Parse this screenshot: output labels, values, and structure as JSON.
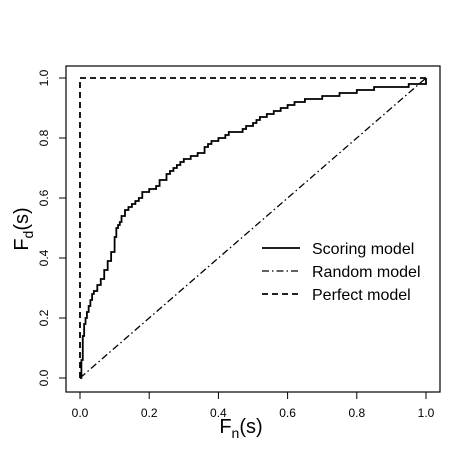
{
  "chart_data": {
    "type": "line",
    "xlabel": {
      "main": "F",
      "sub": "n",
      "rest": "(s)"
    },
    "ylabel": {
      "main": "F",
      "sub": "d",
      "rest": "(s)"
    },
    "xlim": [
      0,
      1
    ],
    "ylim": [
      0,
      1
    ],
    "x_ticks": [
      "0.0",
      "0.2",
      "0.4",
      "0.6",
      "0.8",
      "1.0"
    ],
    "y_ticks": [
      "0.0",
      "0.2",
      "0.4",
      "0.6",
      "0.8",
      "1.0"
    ],
    "grid": false,
    "legend_position": "center-right",
    "series": [
      {
        "name": "Scoring model",
        "style": "solid",
        "x": [
          0,
          0.004,
          0.008,
          0.012,
          0.016,
          0.02,
          0.025,
          0.03,
          0.035,
          0.04,
          0.05,
          0.06,
          0.07,
          0.08,
          0.09,
          0.1,
          0.105,
          0.11,
          0.115,
          0.12,
          0.13,
          0.14,
          0.15,
          0.16,
          0.17,
          0.18,
          0.19,
          0.2,
          0.22,
          0.23,
          0.25,
          0.26,
          0.27,
          0.28,
          0.29,
          0.3,
          0.32,
          0.34,
          0.36,
          0.37,
          0.38,
          0.4,
          0.42,
          0.43,
          0.45,
          0.47,
          0.48,
          0.5,
          0.51,
          0.52,
          0.54,
          0.56,
          0.58,
          0.6,
          0.62,
          0.65,
          0.7,
          0.75,
          0.8,
          0.85,
          0.9,
          0.95,
          1.0
        ],
        "y": [
          0,
          0.06,
          0.14,
          0.18,
          0.2,
          0.22,
          0.24,
          0.26,
          0.28,
          0.29,
          0.31,
          0.33,
          0.36,
          0.39,
          0.42,
          0.47,
          0.5,
          0.51,
          0.52,
          0.54,
          0.56,
          0.57,
          0.58,
          0.59,
          0.6,
          0.62,
          0.62,
          0.63,
          0.64,
          0.66,
          0.68,
          0.69,
          0.7,
          0.71,
          0.72,
          0.73,
          0.74,
          0.75,
          0.77,
          0.78,
          0.79,
          0.8,
          0.81,
          0.82,
          0.82,
          0.83,
          0.84,
          0.85,
          0.86,
          0.87,
          0.88,
          0.89,
          0.9,
          0.91,
          0.92,
          0.93,
          0.94,
          0.95,
          0.96,
          0.97,
          0.97,
          0.98,
          1.0
        ]
      },
      {
        "name": "Random model",
        "style": "dashdot",
        "x": [
          0,
          1
        ],
        "y": [
          0,
          1
        ]
      },
      {
        "name": "Perfect model",
        "style": "dashed",
        "x": [
          0,
          0,
          1
        ],
        "y": [
          0,
          1,
          1
        ]
      }
    ]
  }
}
